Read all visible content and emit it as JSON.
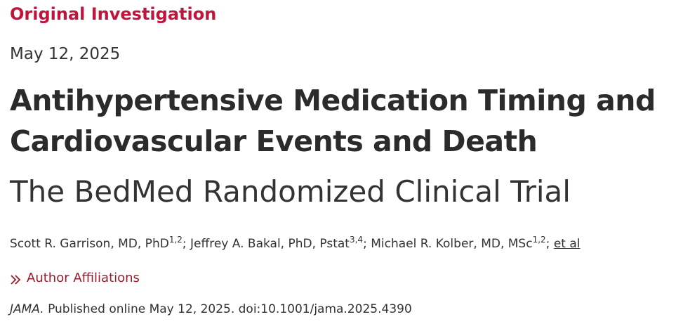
{
  "article": {
    "type": "Original Investigation",
    "date": "May 12, 2025",
    "title_line1": "Antihypertensive Medication Timing and",
    "title_line2": "Cardiovascular Events and Death",
    "subtitle": "The BedMed Randomized Clinical Trial"
  },
  "authors": [
    {
      "name": "Scott R. Garrison, MD, PhD",
      "sup": "1,2",
      "sep": "; "
    },
    {
      "name": "Jeffrey A. Bakal, PhD, Pstat",
      "sup": "3,4",
      "sep": "; "
    },
    {
      "name": "Michael R. Kolber, MD, MSc",
      "sup": "1,2",
      "sep": "; "
    }
  ],
  "et_al_label": "et al",
  "affiliations_label": "Author Affiliations",
  "citation": {
    "journal": "JAMA.",
    "text": " Published online May 12, 2025. doi:10.1001/jama.2025.4390"
  },
  "colors": {
    "article_type": "#c0143c",
    "affiliations_link": "#9a1b2c",
    "text": "#333333"
  },
  "icons": {
    "affiliations": "double-chevron-right-icon"
  }
}
